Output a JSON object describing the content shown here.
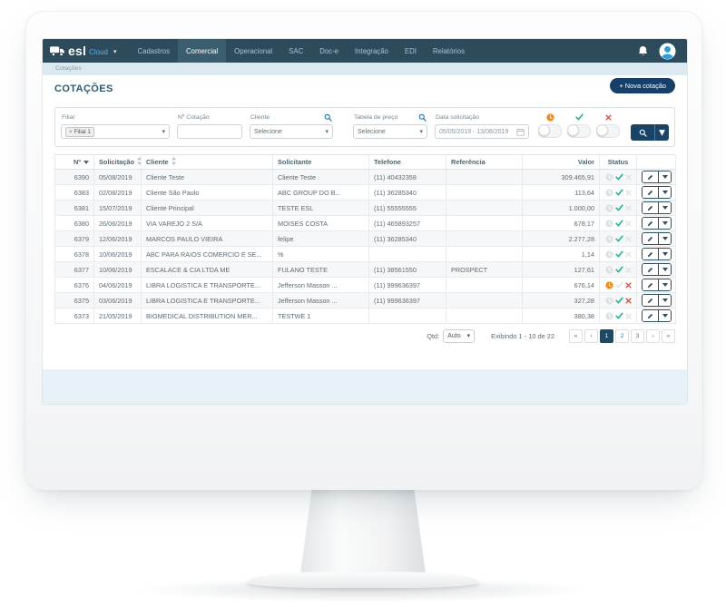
{
  "navbar": {
    "logo": {
      "brand": "esl",
      "suffix": "Cloud"
    },
    "items": [
      {
        "label": "Cadastros",
        "active": false
      },
      {
        "label": "Comercial",
        "active": true
      },
      {
        "label": "Operacional",
        "active": false
      },
      {
        "label": "SAC",
        "active": false
      },
      {
        "label": "Doc-e",
        "active": false
      },
      {
        "label": "Integração",
        "active": false
      },
      {
        "label": "EDI",
        "active": false
      },
      {
        "label": "Relatórios",
        "active": false
      }
    ],
    "icons": [
      "bell-icon",
      "user-avatar"
    ]
  },
  "breadcrumb": "Cotações",
  "page": {
    "title": "COTAÇÕES",
    "new_button_plus": "+",
    "new_button": "Nova cotação"
  },
  "filters": {
    "filial": {
      "label": "Filial",
      "tag_remove": "×",
      "tag": "Filial 1"
    },
    "cotacao": {
      "label": "Nº Cotação",
      "value": ""
    },
    "cliente": {
      "label": "Cliente",
      "value": "Selecione",
      "icon": "search-icon"
    },
    "tabela": {
      "label": "Tabela de preço",
      "value": "Selecione",
      "icon": "search-icon"
    },
    "data": {
      "label": "Data solicitação",
      "value": "05/05/2019 - 13/08/2019",
      "icon": "calendar-icon"
    },
    "status_toggles": [
      {
        "name": "pending",
        "icon": "clock-icon",
        "color": "#f28a1e",
        "enabled": false
      },
      {
        "name": "approved",
        "icon": "check-icon",
        "color": "#1cb394",
        "enabled": false
      },
      {
        "name": "rejected",
        "icon": "x-icon",
        "color": "#e24c3e",
        "enabled": false
      }
    ]
  },
  "table": {
    "columns": [
      {
        "label": "Nº",
        "sort": "desc",
        "align": "right"
      },
      {
        "label": "Solicitação",
        "sort": "both",
        "align": "left"
      },
      {
        "label": "Cliente",
        "sort": "both",
        "align": "left"
      },
      {
        "label": "Solicitante",
        "sort": null,
        "align": "left"
      },
      {
        "label": "Telefone",
        "sort": null,
        "align": "left"
      },
      {
        "label": "Referência",
        "sort": null,
        "align": "left"
      },
      {
        "label": "Valor",
        "sort": null,
        "align": "right"
      },
      {
        "label": "Status",
        "sort": null,
        "align": "center"
      },
      {
        "label": "",
        "sort": null,
        "align": "center"
      }
    ],
    "rows": [
      {
        "n": "6390",
        "solicitacao": "05/08/2019",
        "cliente": "Cliente Teste",
        "solicitante": "Cliente Teste",
        "telefone": "(11) 40432358",
        "referencia": "",
        "valor": "309.465,91",
        "status": {
          "clock": false,
          "check": true,
          "x": false
        }
      },
      {
        "n": "6383",
        "solicitacao": "02/08/2019",
        "cliente": "Cliente São Paulo",
        "solicitante": "ABC GROUP DO B...",
        "telefone": "(11) 36285340",
        "referencia": "",
        "valor": "113,64",
        "status": {
          "clock": false,
          "check": true,
          "x": false
        }
      },
      {
        "n": "6381",
        "solicitacao": "15/07/2019",
        "cliente": "Cliente Principal",
        "solicitante": "TESTE ESL",
        "telefone": "(11) 55555555",
        "referencia": "",
        "valor": "1.000,00",
        "status": {
          "clock": false,
          "check": true,
          "x": false
        }
      },
      {
        "n": "6380",
        "solicitacao": "26/06/2019",
        "cliente": "VIA VAREJO 2 S/A",
        "solicitante": "MOISES COSTA",
        "telefone": "(11) 465893257",
        "referencia": "",
        "valor": "678,17",
        "status": {
          "clock": false,
          "check": true,
          "x": false
        }
      },
      {
        "n": "6379",
        "solicitacao": "12/06/2019",
        "cliente": "MARCOS PAULO VIEIRA",
        "solicitante": "felipe",
        "telefone": "(11) 36285340",
        "referencia": "",
        "valor": "2.277,28",
        "status": {
          "clock": false,
          "check": true,
          "x": false
        }
      },
      {
        "n": "6378",
        "solicitacao": "10/06/2019",
        "cliente": "ABC PARA RAIOS COMERCIO E SE...",
        "solicitante": "%",
        "telefone": "",
        "referencia": "",
        "valor": "1,14",
        "status": {
          "clock": false,
          "check": true,
          "x": false
        }
      },
      {
        "n": "6377",
        "solicitacao": "10/06/2019",
        "cliente": "ESCALACE & CIA LTDA ME",
        "solicitante": "FULANO TESTE",
        "telefone": "(11) 38561550",
        "referencia": "PROSPECT",
        "valor": "127,61",
        "status": {
          "clock": false,
          "check": true,
          "x": false
        }
      },
      {
        "n": "6376",
        "solicitacao": "04/06/2019",
        "cliente": "LIBRA LOGISTICA E TRANSPORTE...",
        "solicitante": "Jefferson Masson ...",
        "telefone": "(11) 999636397",
        "referencia": "",
        "valor": "676,14",
        "status": {
          "clock": true,
          "check": false,
          "x": true
        }
      },
      {
        "n": "6375",
        "solicitacao": "03/06/2019",
        "cliente": "LIBRA LOGISTICA E TRANSPORTE...",
        "solicitante": "Jefferson Masson ...",
        "telefone": "(11) 999636397",
        "referencia": "",
        "valor": "327,28",
        "status": {
          "clock": false,
          "check": true,
          "x": true
        }
      },
      {
        "n": "6373",
        "solicitacao": "21/05/2019",
        "cliente": "BIOMEDICAL DISTRIBUTION MER...",
        "solicitante": "TESTWE 1",
        "telefone": "",
        "referencia": "",
        "valor": "380,38",
        "status": {
          "clock": false,
          "check": true,
          "x": false
        }
      }
    ]
  },
  "footer": {
    "qtd_label": "Qtd:",
    "qtd_value": "Auto",
    "showing": "Exibindo 1 - 10 de 22",
    "pages": [
      "«",
      "‹",
      "1",
      "2",
      "3",
      "›",
      "»"
    ],
    "active_page": "1"
  },
  "colors": {
    "navbar": "#2d4b5b",
    "accent_navy": "#16406a",
    "pending": "#f28a1e",
    "approved": "#1cb394",
    "rejected": "#e24c3e",
    "link_blue": "#2a7fb5"
  }
}
